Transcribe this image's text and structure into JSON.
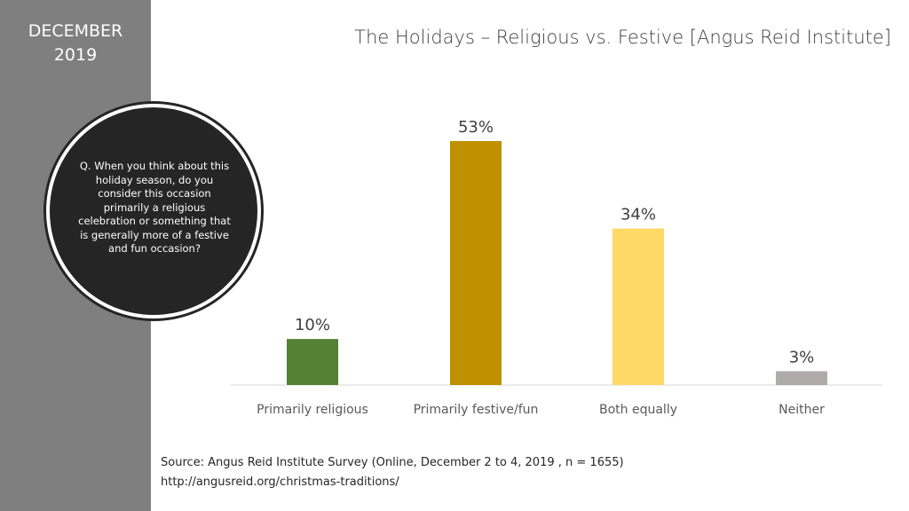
{
  "sidebar": {
    "date_line1": "DECEMBER",
    "date_line2": "2019",
    "color": "#7f7f7f"
  },
  "question": "Q. When you think about this holiday season, do you consider this occasion primarily a religious celebration or something that is generally more of a festive and fun occasion?",
  "chart_data": {
    "type": "bar",
    "title": "The Holidays – Religious vs. Festive [Angus Reid Institute]",
    "categories": [
      "Primarily religious",
      "Primarily festive/fun",
      "Both equally",
      "Neither"
    ],
    "values": [
      10,
      53,
      34,
      3
    ],
    "data_labels": [
      "10%",
      "53%",
      "34%",
      "3%"
    ],
    "colors": [
      "#548235",
      "#bf9000",
      "#ffd966",
      "#aeaaaa"
    ],
    "ylim": [
      0,
      53
    ],
    "grid": false,
    "legend": "none"
  },
  "source": {
    "line1": "Source:  Angus Reid Institute Survey (Online, December 2 to 4, 2019 , n = 1655)",
    "line2": "http://angusreid.org/christmas-traditions/"
  }
}
